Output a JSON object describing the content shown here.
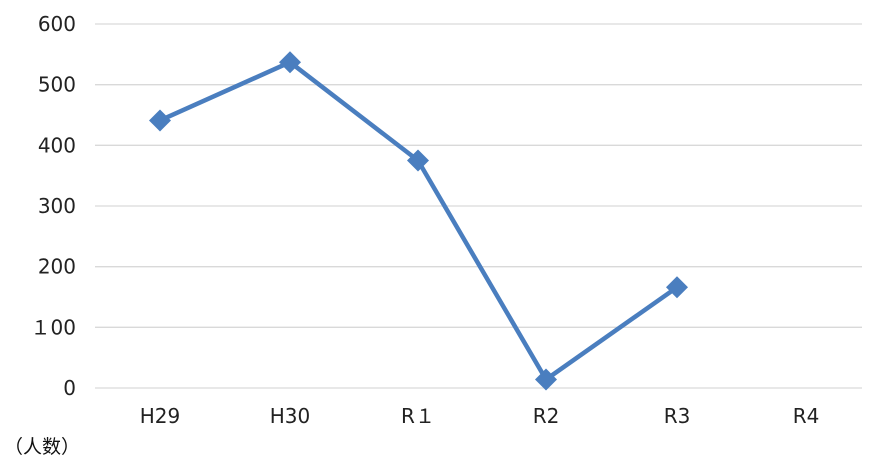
{
  "chart_data": {
    "type": "line",
    "categories": [
      "H29",
      "H30",
      "R１",
      "R2",
      "R3",
      "R4"
    ],
    "series": [
      {
        "values": [
          441,
          537,
          375,
          14,
          166,
          null
        ]
      }
    ],
    "y_ticks": [
      "0",
      "１00",
      "200",
      "300",
      "400",
      "500",
      "600"
    ],
    "ylim": [
      0,
      600
    ],
    "unit_label": "（人数）",
    "grid": true,
    "legend": "none",
    "colors": {
      "series": "#4a7ebf",
      "grid": "#d9d9d9",
      "text": "#222222"
    }
  }
}
